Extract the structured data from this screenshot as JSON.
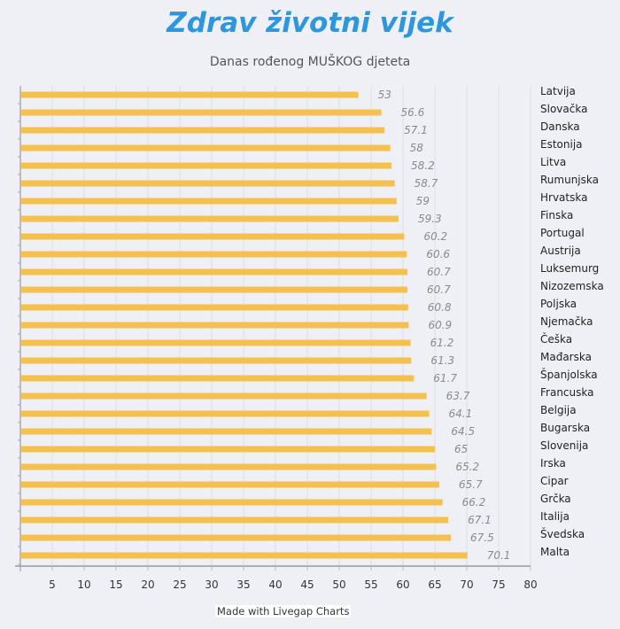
{
  "chart_data": {
    "type": "bar",
    "orientation": "horizontal",
    "title": "Zdrav životni vijek",
    "subtitle": "Danas rođenog MUŠKOG djeteta",
    "credit": "Made with Livegap Charts",
    "categories": [
      "Latvija",
      "Slovačka",
      "Danska",
      "Estonija",
      "Litva",
      "Rumunjska",
      "Hrvatska",
      "Finska",
      "Portugal",
      "Austrija",
      "Luksemurg",
      "Nizozemska",
      "Poljska",
      "Njemačka",
      "Češka",
      "Mađarska",
      "Španjolska",
      "Francuska",
      "Belgija",
      "Bugarska",
      "Slovenija",
      "Irska",
      "Cipar",
      "Grčka",
      "Italija",
      "Švedska",
      "Malta"
    ],
    "values": [
      53,
      56.6,
      57.1,
      58,
      58.2,
      58.7,
      59,
      59.3,
      60.2,
      60.6,
      60.7,
      60.7,
      60.8,
      60.9,
      61.2,
      61.3,
      61.7,
      63.7,
      64.1,
      64.5,
      65,
      65.2,
      65.7,
      66.2,
      67.1,
      67.5,
      70.1
    ],
    "value_labels": [
      "53",
      "56.6",
      "57.1",
      "58",
      "58.2",
      "58.7",
      "59",
      "59.3",
      "60.2",
      "60.6",
      "60.7",
      "60.7",
      "60.8",
      "60.9",
      "61.2",
      "61.3",
      "61.7",
      "63.7",
      "64.1",
      "64.5",
      "65",
      "65.2",
      "65.7",
      "66.2",
      "67.1",
      "67.5",
      "70.1"
    ],
    "xlim": [
      0,
      80
    ],
    "xticks": [
      "5",
      "10",
      "15",
      "20",
      "25",
      "30",
      "35",
      "40",
      "45",
      "50",
      "55",
      "60",
      "65",
      "70",
      "75",
      "80"
    ],
    "grid": true,
    "bar_color": "#f2c14e"
  }
}
